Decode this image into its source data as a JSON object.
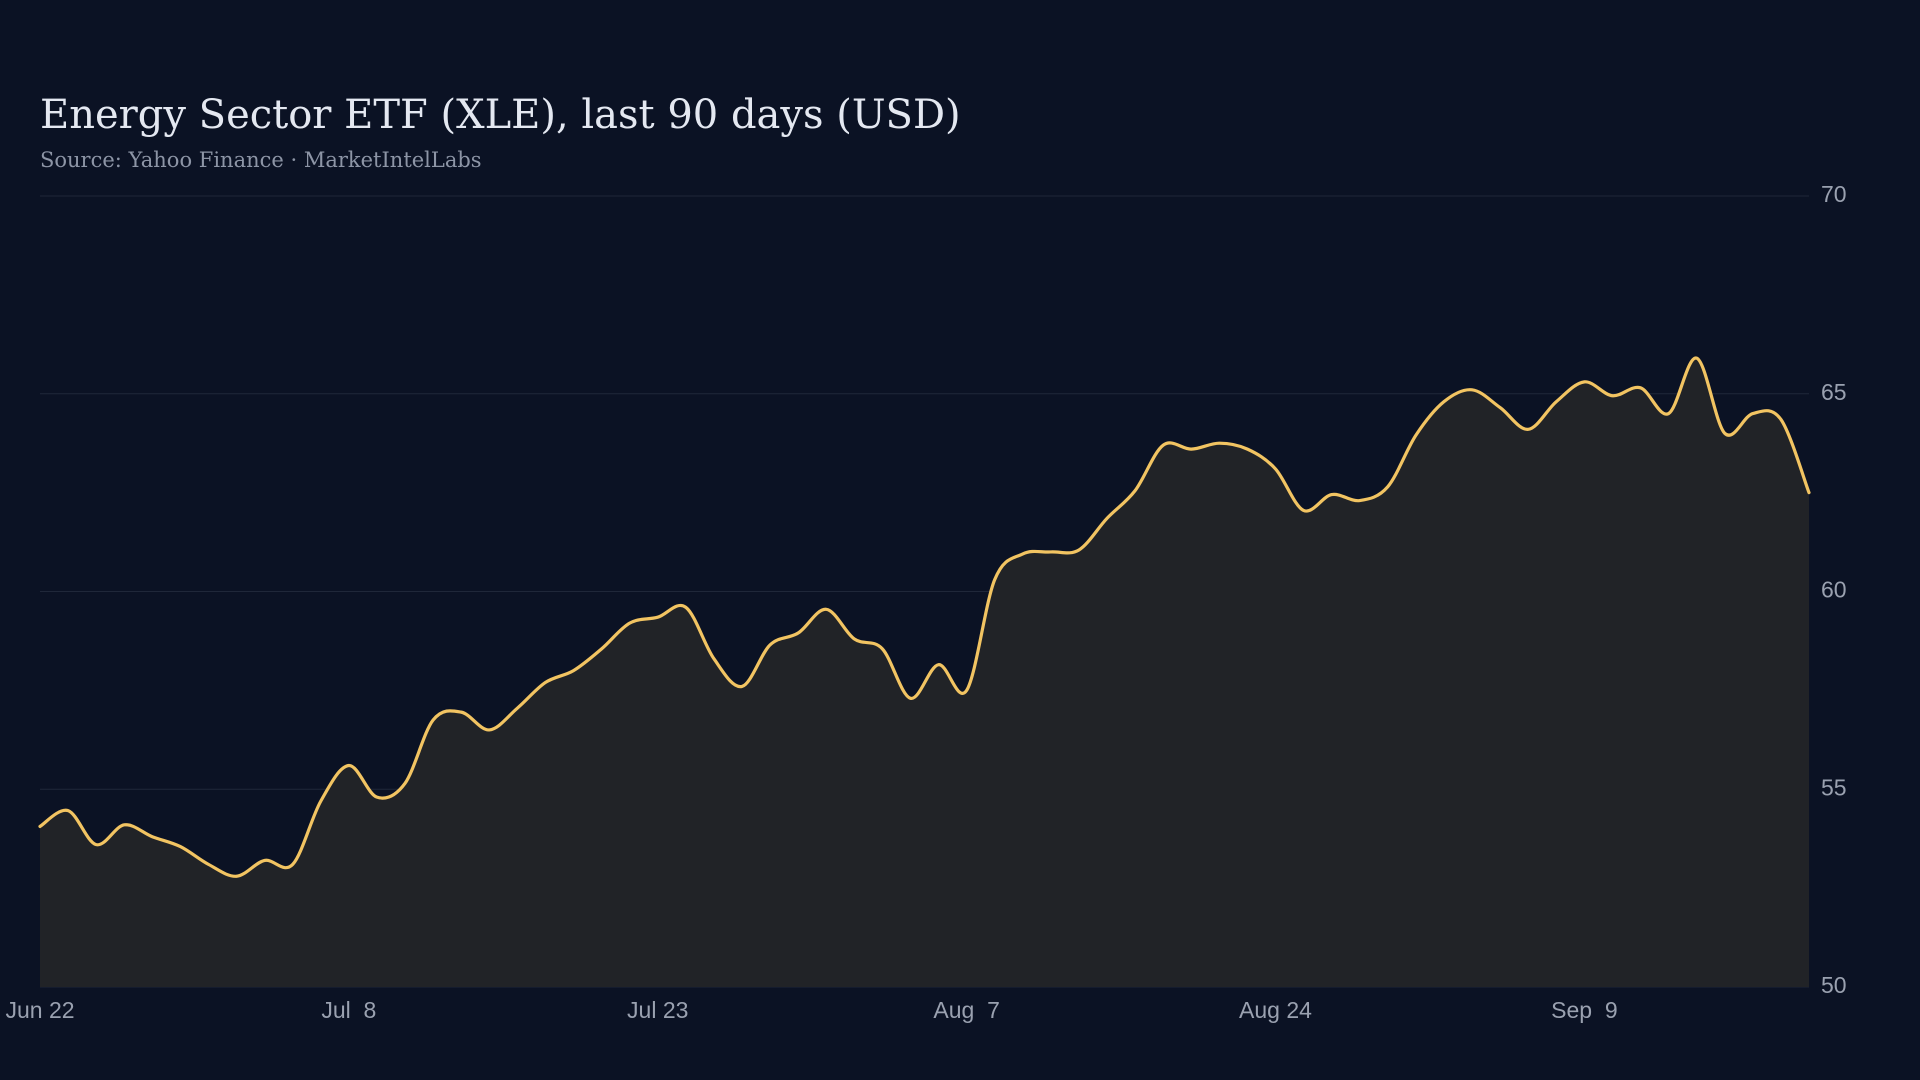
{
  "chart_data": {
    "type": "area",
    "title": "Energy Sector ETF (XLE), last 90 days (USD)",
    "subtitle": "Source: Yahoo Finance · MarketIntelLabs",
    "categories": [
      "Jun 22",
      null,
      null,
      null,
      null,
      null,
      null,
      null,
      null,
      null,
      null,
      "Jul  8",
      null,
      null,
      null,
      null,
      null,
      null,
      null,
      null,
      null,
      null,
      "Jul 23",
      null,
      null,
      null,
      null,
      null,
      null,
      null,
      null,
      null,
      null,
      "Aug  7",
      null,
      null,
      null,
      null,
      null,
      null,
      null,
      null,
      null,
      null,
      "Aug 24",
      null,
      null,
      null,
      null,
      null,
      null,
      null,
      null,
      null,
      null,
      "Sep  9",
      null,
      null,
      null,
      null,
      null,
      null,
      null,
      null
    ],
    "series": [
      {
        "name": "XLE",
        "color": "#f2c462",
        "values": [
          54.06,
          54.46,
          53.6,
          54.1,
          53.8,
          53.55,
          53.1,
          52.8,
          53.2,
          53.1,
          54.7,
          55.6,
          54.8,
          55.15,
          56.75,
          56.95,
          56.5,
          57.05,
          57.7,
          58.0,
          58.55,
          59.2,
          59.35,
          59.6,
          58.3,
          57.6,
          58.65,
          58.95,
          59.55,
          58.8,
          58.55,
          57.3,
          58.15,
          57.5,
          60.3,
          60.95,
          61.0,
          61.05,
          61.85,
          62.55,
          63.7,
          63.6,
          63.75,
          63.6,
          63.1,
          62.05,
          62.45,
          62.3,
          62.65,
          63.95,
          64.8,
          65.1,
          64.65,
          64.1,
          64.8,
          65.3,
          64.95,
          65.15,
          64.5,
          65.9,
          64.0,
          64.5,
          64.35,
          62.5
        ]
      }
    ],
    "area_color": "#212327",
    "ylim": [
      50,
      70
    ],
    "yticks": [
      50,
      55,
      60,
      65,
      70
    ],
    "grid": true
  }
}
